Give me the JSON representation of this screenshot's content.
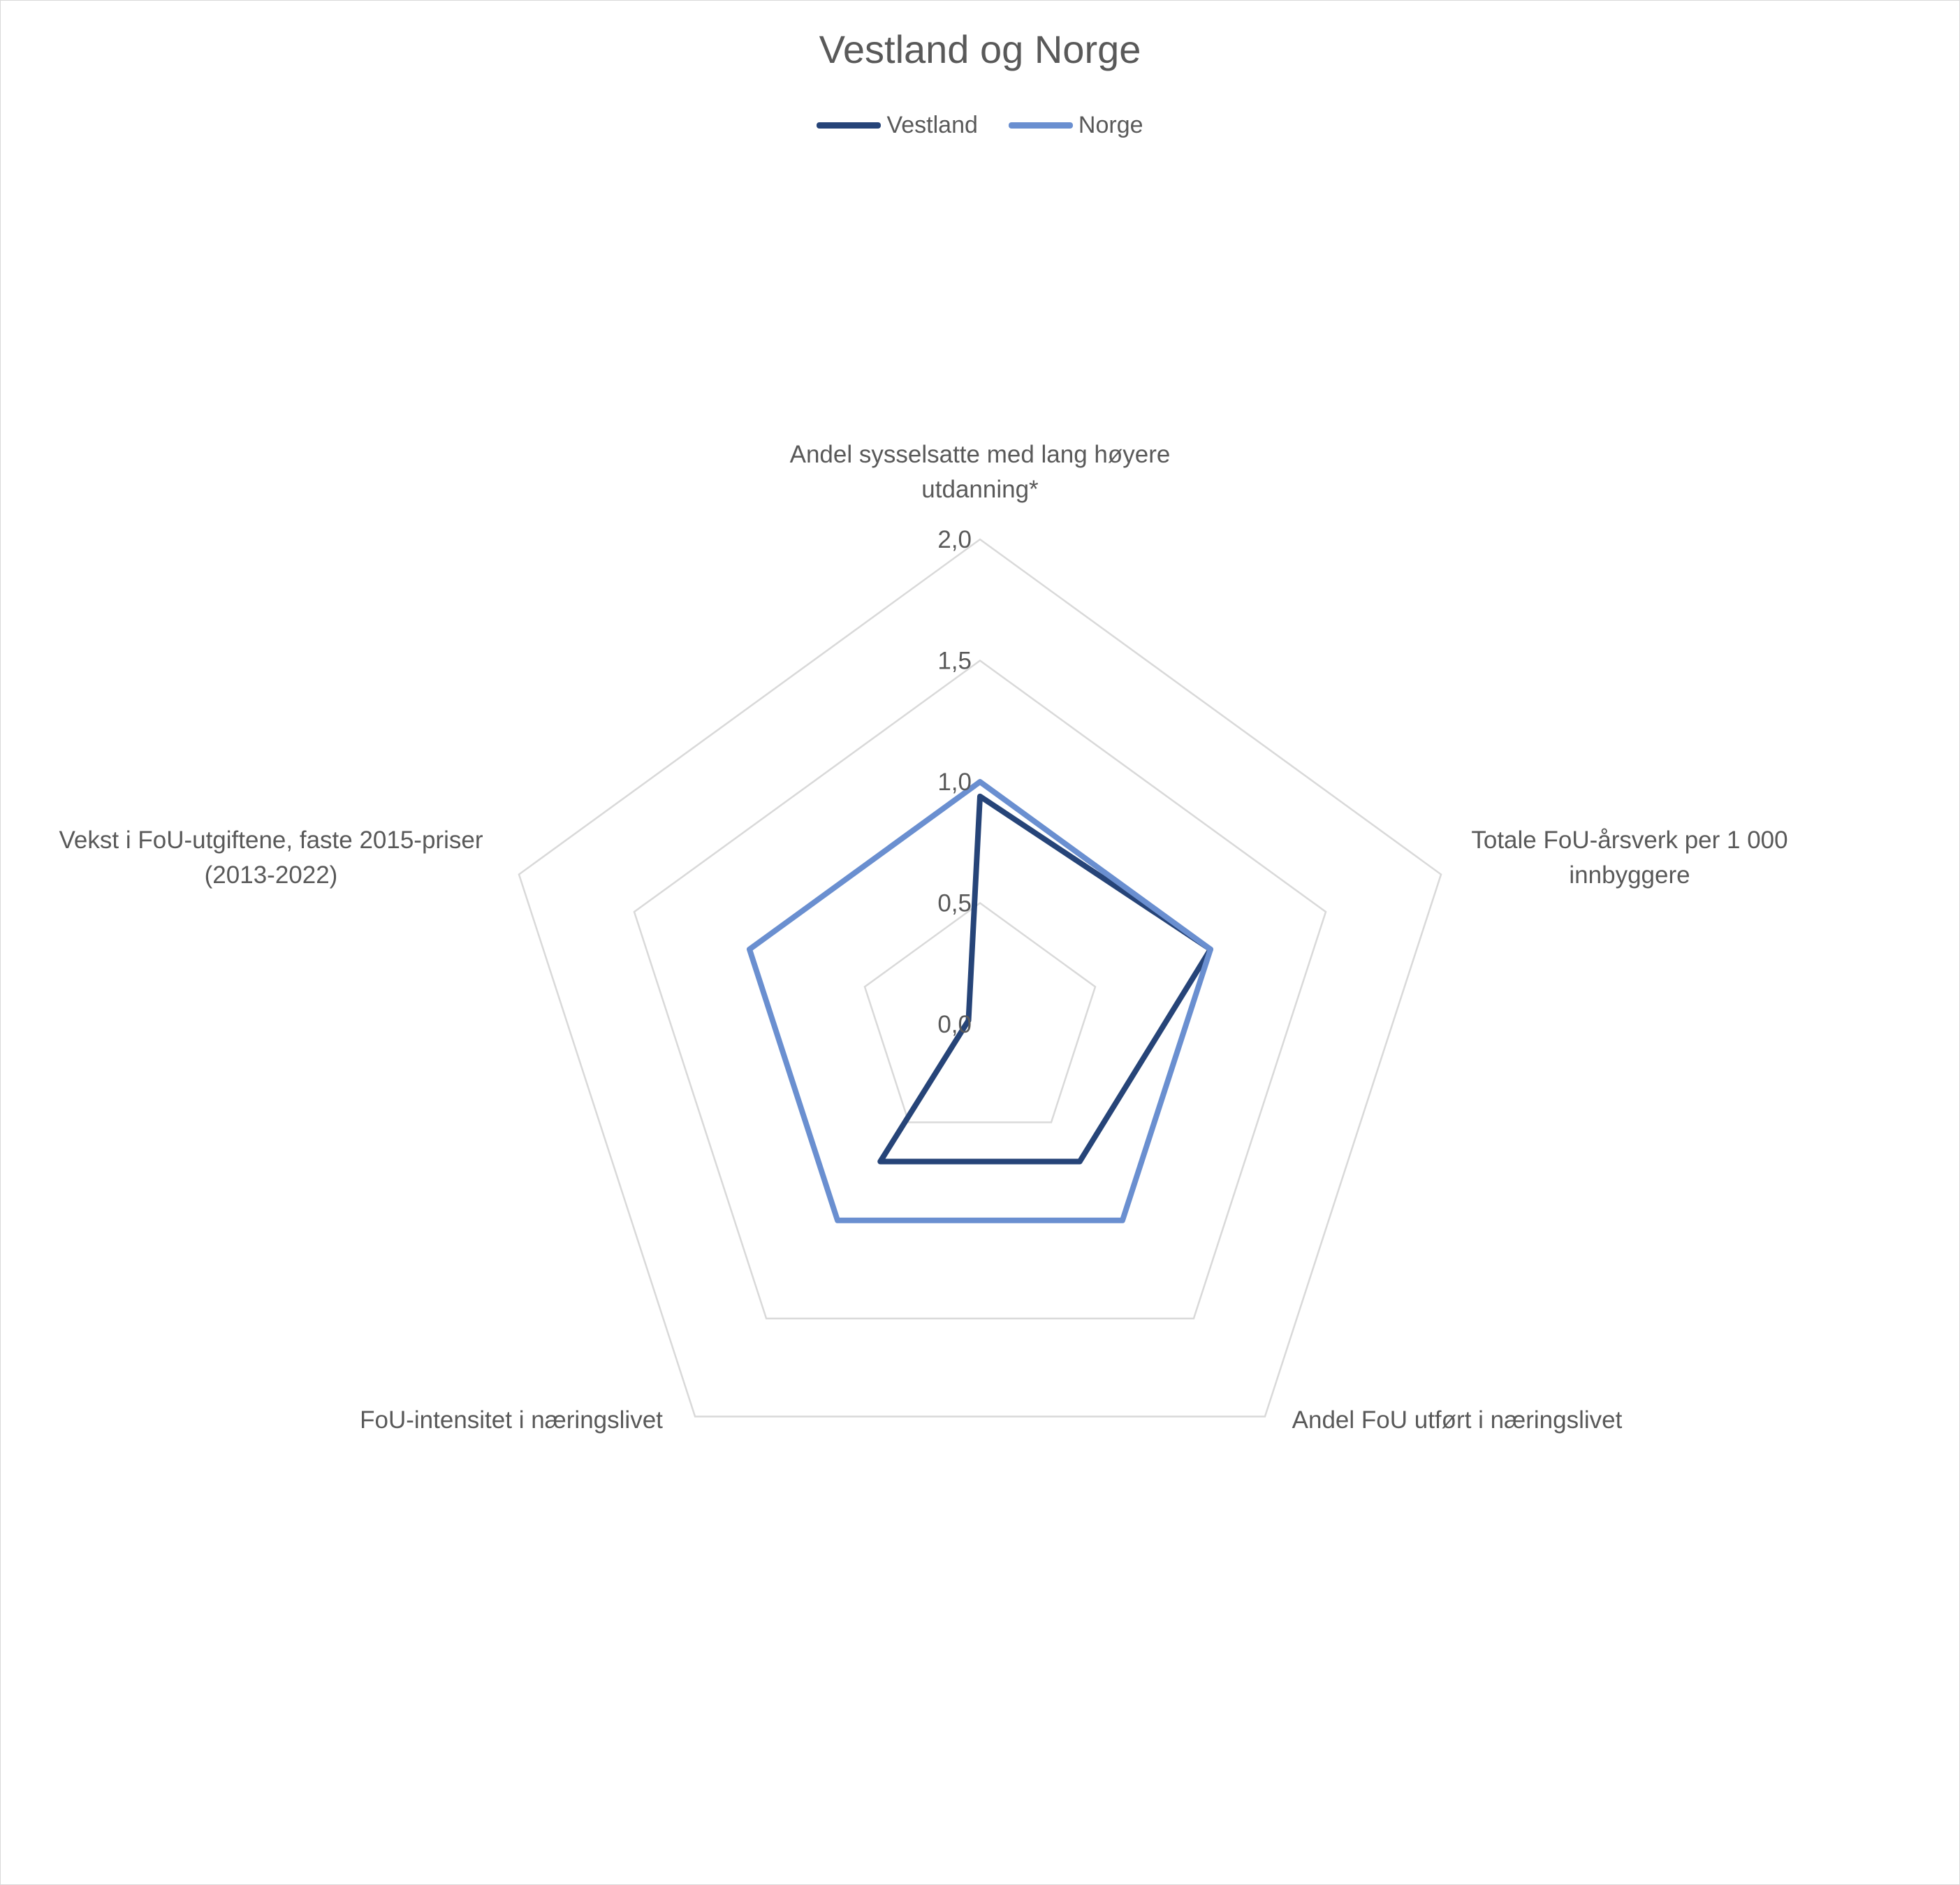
{
  "chart_data": {
    "type": "radar",
    "title": "Vestland og Norge",
    "categories": [
      [
        "Andel sysselsatte med lang høyere",
        "utdanning*"
      ],
      [
        "Totale FoU-årsverk per 1 000",
        "innbyggere"
      ],
      [
        "Andel FoU utført i næringslivet"
      ],
      [
        "FoU-intensitet i næringslivet"
      ],
      [
        "Vekst i FoU-utgiftene, faste 2015-priser",
        "(2013-2022)"
      ]
    ],
    "rlim": [
      0,
      2
    ],
    "ticks": [
      "0,0",
      "0,5",
      "1,0",
      "1,5",
      "2,0"
    ],
    "tick_values": [
      0,
      0.5,
      1.0,
      1.5,
      2.0
    ],
    "grid": true,
    "legend_position": "top",
    "series": [
      {
        "name": "Vestland",
        "color": "#264478",
        "values": [
          0.94,
          1.0,
          0.7,
          0.7,
          0.05
        ]
      },
      {
        "name": "Norge",
        "color": "#6a8fd0",
        "values": [
          1.0,
          1.0,
          1.0,
          1.0,
          1.0
        ]
      }
    ]
  }
}
